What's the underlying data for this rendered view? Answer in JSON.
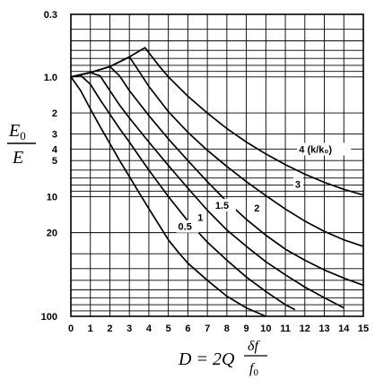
{
  "chart_data": {
    "type": "line",
    "title": "",
    "xlabel": {
      "main": "D = 2Q",
      "frac_top": "δf",
      "frac_bottom": "f",
      "frac_bottom_sub": "0"
    },
    "ylabel": {
      "top": "E",
      "top_sub": "0",
      "bottom": "E"
    },
    "x_ticks": [
      0,
      1,
      2,
      3,
      4,
      5,
      6,
      7,
      8,
      9,
      10,
      11,
      12,
      13,
      14,
      15
    ],
    "xlim": [
      0,
      15
    ],
    "y_scale": "log",
    "y_reversed": true,
    "ylim": [
      0.3,
      100
    ],
    "y_tick_labels": [
      {
        "value": 0.3,
        "label": "0.3"
      },
      {
        "value": 1.0,
        "label": "1.0"
      },
      {
        "value": 2,
        "label": "2"
      },
      {
        "value": 3,
        "label": "3"
      },
      {
        "value": 4,
        "label": "4"
      },
      {
        "value": 5,
        "label": "5"
      },
      {
        "value": 10,
        "label": "10"
      },
      {
        "value": 20,
        "label": "20"
      },
      {
        "value": 100,
        "label": "100"
      }
    ],
    "grid": true,
    "series": [
      {
        "name": "0.5",
        "points": [
          [
            0,
            1.0
          ],
          [
            0.5,
            1.3
          ],
          [
            1,
            1.85
          ],
          [
            1.5,
            2.6
          ],
          [
            2,
            3.6
          ],
          [
            2.5,
            5
          ],
          [
            3,
            6.8
          ],
          [
            3.5,
            9.3
          ],
          [
            4,
            12.6
          ],
          [
            4.5,
            17
          ],
          [
            5,
            23
          ],
          [
            5.5,
            29
          ],
          [
            6,
            36
          ],
          [
            7,
            50
          ],
          [
            8,
            68
          ],
          [
            9,
            85
          ],
          [
            10,
            100
          ]
        ]
      },
      {
        "name": "1",
        "points": [
          [
            0,
            1.0
          ],
          [
            0.5,
            0.97
          ],
          [
            1,
            1.15
          ],
          [
            1.5,
            1.55
          ],
          [
            2,
            2.05
          ],
          [
            2.5,
            2.7
          ],
          [
            3,
            3.5
          ],
          [
            3.5,
            4.6
          ],
          [
            4,
            6
          ],
          [
            5,
            10
          ],
          [
            6,
            16
          ],
          [
            7,
            24
          ],
          [
            8,
            34
          ],
          [
            9,
            47
          ],
          [
            10,
            62
          ],
          [
            11,
            80
          ],
          [
            11.5,
            88
          ]
        ]
      },
      {
        "name": "1.5",
        "points": [
          [
            0,
            1.0
          ],
          [
            1,
            0.92
          ],
          [
            1.5,
            0.98
          ],
          [
            2,
            1.3
          ],
          [
            2.5,
            1.72
          ],
          [
            3,
            2.2
          ],
          [
            4,
            3.5
          ],
          [
            5,
            5.5
          ],
          [
            6,
            8.5
          ],
          [
            7,
            13
          ],
          [
            8,
            19
          ],
          [
            9,
            26
          ],
          [
            10,
            35
          ],
          [
            11,
            45
          ],
          [
            12,
            57
          ],
          [
            13,
            70
          ],
          [
            14,
            85
          ]
        ]
      },
      {
        "name": "2",
        "points": [
          [
            0,
            1.0
          ],
          [
            1,
            0.92
          ],
          [
            2,
            0.82
          ],
          [
            2.5,
            0.98
          ],
          [
            3,
            1.3
          ],
          [
            4,
            2.1
          ],
          [
            5,
            3.3
          ],
          [
            6,
            5
          ],
          [
            7,
            7.5
          ],
          [
            8,
            11
          ],
          [
            9,
            15.5
          ],
          [
            10,
            21
          ],
          [
            11,
            27.5
          ],
          [
            12,
            34
          ],
          [
            13,
            41
          ],
          [
            14,
            48
          ],
          [
            15,
            55
          ]
        ]
      },
      {
        "name": "3",
        "points": [
          [
            0,
            1.0
          ],
          [
            1,
            0.92
          ],
          [
            2,
            0.82
          ],
          [
            3,
            0.68
          ],
          [
            3.5,
            0.9
          ],
          [
            4,
            1.2
          ],
          [
            5,
            1.95
          ],
          [
            6,
            2.9
          ],
          [
            7,
            4.1
          ],
          [
            8,
            5.6
          ],
          [
            9,
            7.5
          ],
          [
            10,
            9.8
          ],
          [
            11,
            12.7
          ],
          [
            12,
            16
          ],
          [
            13,
            19.5
          ],
          [
            14,
            23
          ],
          [
            15,
            26
          ]
        ]
      },
      {
        "name": "4 (k/k₀)",
        "points": [
          [
            0,
            1.0
          ],
          [
            1,
            0.92
          ],
          [
            2,
            0.82
          ],
          [
            3,
            0.68
          ],
          [
            3.8,
            0.57
          ],
          [
            4.5,
            0.8
          ],
          [
            5,
            1.0
          ],
          [
            6,
            1.45
          ],
          [
            7,
            2.0
          ],
          [
            8,
            2.7
          ],
          [
            9,
            3.5
          ],
          [
            10,
            4.4
          ],
          [
            11,
            5.4
          ],
          [
            12,
            6.5
          ],
          [
            13,
            7.6
          ],
          [
            14,
            8.7
          ],
          [
            15,
            9.7
          ]
        ]
      }
    ],
    "annotations": [
      {
        "text": "0.5",
        "x": 5.5,
        "y": 19
      },
      {
        "text": "1",
        "x": 6.5,
        "y": 16
      },
      {
        "text": "1.5",
        "x": 7.4,
        "y": 12.6
      },
      {
        "text": "2",
        "x": 9.4,
        "y": 13.3
      },
      {
        "text": "3",
        "x": 11.5,
        "y": 8.4
      },
      {
        "text": "4 (k/k₀)",
        "x": 11.7,
        "y": 4.3
      }
    ]
  }
}
